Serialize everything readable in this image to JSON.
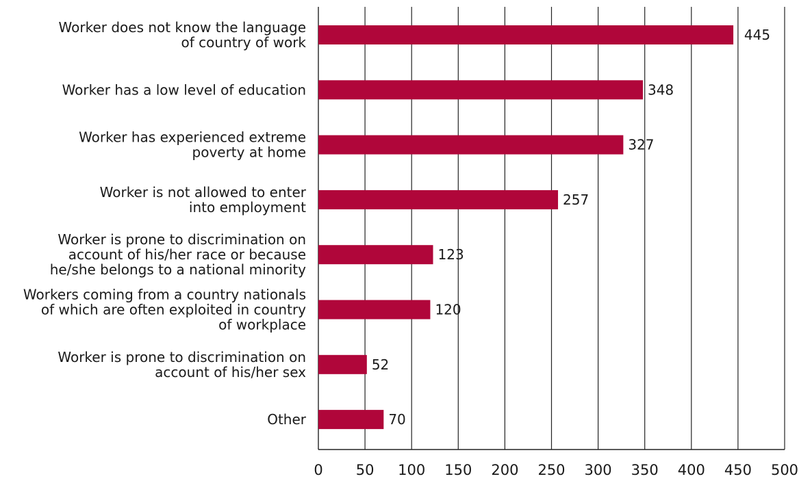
{
  "chart_data": {
    "type": "bar",
    "orientation": "horizontal",
    "categories": [
      "Worker does not know the language of country of work",
      "Worker has a low level of education",
      "Worker has experienced extreme poverty at home",
      "Worker is not allowed to enter into employment",
      "Worker is prone to discrimination on account of his/her race or because he/she belongs to a national minority",
      "Workers coming from a country nationals of which are often exploited in country of workplace",
      "Worker is prone to discrimination on account of his/her sex",
      "Other"
    ],
    "category_label_lines": [
      [
        "Worker does not know the language",
        "of country of work"
      ],
      [
        "Worker has a low level of education"
      ],
      [
        "Worker has experienced extreme",
        "poverty at home"
      ],
      [
        "Worker is not allowed to enter",
        "into employment"
      ],
      [
        "Worker is prone to discrimination on",
        "account of his/her race or because",
        "he/she belongs to a national minority"
      ],
      [
        "Workers coming from a country nationals",
        "of which are often exploited in country",
        "of workplace"
      ],
      [
        "Worker is prone to discrimination on",
        "account of his/her sex"
      ],
      [
        "Other"
      ]
    ],
    "values": [
      445,
      348,
      327,
      257,
      123,
      120,
      52,
      70
    ],
    "value_labels": [
      "445",
      "348",
      "327",
      "257",
      "123",
      "120",
      "52",
      "70"
    ],
    "xlim": [
      0,
      500
    ],
    "xticks": [
      0,
      50,
      100,
      150,
      200,
      250,
      300,
      350,
      400,
      450,
      500
    ],
    "xtick_labels": [
      "0",
      "50",
      "100",
      "150",
      "200",
      "250",
      "300",
      "350",
      "400",
      "450",
      "500"
    ],
    "grid": "vertical",
    "bar_color": "#b0063a",
    "title": "",
    "xlabel": "",
    "ylabel": ""
  }
}
